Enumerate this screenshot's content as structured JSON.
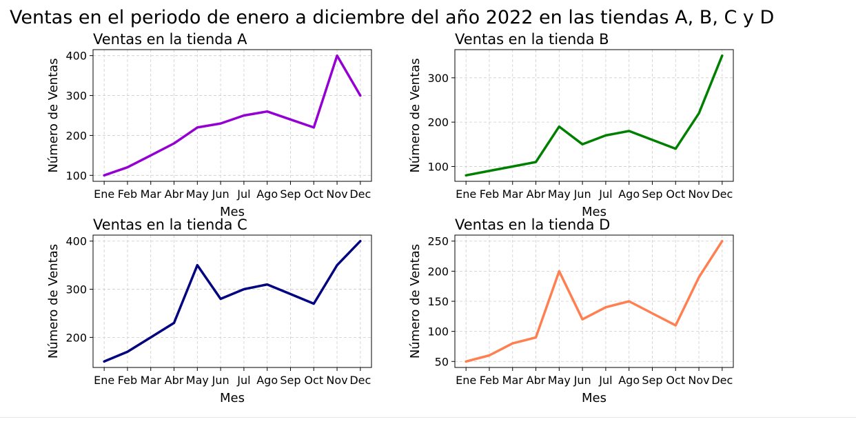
{
  "figure": {
    "title": "Ventas en el periodo de enero a diciembre del año 2022 en las tiendas A, B, C y D"
  },
  "chart_data": [
    {
      "type": "line",
      "title": "Ventas en la tienda A",
      "xlabel": "Mes",
      "ylabel": "Número de Ventas",
      "categories": [
        "Ene",
        "Feb",
        "Mar",
        "Abr",
        "May",
        "Jun",
        "Jul",
        "Ago",
        "Sep",
        "Oct",
        "Nov",
        "Dec"
      ],
      "values": [
        100,
        120,
        150,
        180,
        220,
        230,
        250,
        260,
        240,
        220,
        400,
        300
      ],
      "color": "#9400d3",
      "ylim": [
        85,
        415
      ],
      "yticks": [
        100,
        200,
        300,
        400
      ],
      "grid": true
    },
    {
      "type": "line",
      "title": "Ventas en la tienda B",
      "xlabel": "Mes",
      "ylabel": "Número de Ventas",
      "categories": [
        "Ene",
        "Feb",
        "Mar",
        "Abr",
        "May",
        "Jun",
        "Jul",
        "Ago",
        "Sep",
        "Oct",
        "Nov",
        "Dec"
      ],
      "values": [
        80,
        90,
        100,
        110,
        190,
        150,
        170,
        180,
        160,
        140,
        220,
        350
      ],
      "color": "#008000",
      "ylim": [
        66.5,
        363.5
      ],
      "yticks": [
        100,
        200,
        300
      ],
      "grid": true
    },
    {
      "type": "line",
      "title": "Ventas en la tienda C",
      "xlabel": "Mes",
      "ylabel": "Número de Ventas",
      "categories": [
        "Ene",
        "Feb",
        "Mar",
        "Abr",
        "May",
        "Jun",
        "Jul",
        "Ago",
        "Sep",
        "Oct",
        "Nov",
        "Dec"
      ],
      "values": [
        150,
        170,
        200,
        230,
        350,
        280,
        300,
        310,
        290,
        270,
        350,
        400
      ],
      "color": "#000080",
      "ylim": [
        137.5,
        412.5
      ],
      "yticks": [
        200,
        300,
        400
      ],
      "grid": true
    },
    {
      "type": "line",
      "title": "Ventas en la tienda D",
      "xlabel": "Mes",
      "ylabel": "Número de Ventas",
      "categories": [
        "Ene",
        "Feb",
        "Mar",
        "Abr",
        "May",
        "Jun",
        "Jul",
        "Ago",
        "Sep",
        "Oct",
        "Nov",
        "Dec"
      ],
      "values": [
        50,
        60,
        80,
        90,
        200,
        120,
        140,
        150,
        130,
        110,
        190,
        250
      ],
      "color": "#ff7f50",
      "ylim": [
        40,
        260
      ],
      "yticks": [
        50,
        100,
        150,
        200,
        250
      ],
      "grid": true
    }
  ]
}
